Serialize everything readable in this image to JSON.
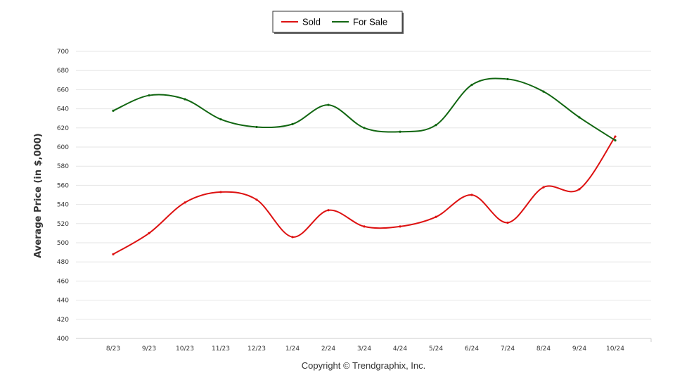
{
  "chart_data": {
    "type": "line",
    "x": [
      "8/23",
      "9/23",
      "10/23",
      "11/23",
      "12/23",
      "1/24",
      "2/24",
      "3/24",
      "4/24",
      "5/24",
      "6/24",
      "7/24",
      "8/24",
      "9/24",
      "10/24"
    ],
    "series": [
      {
        "name": "Sold",
        "color": "#dd1111",
        "values": [
          488,
          510,
          542,
          553,
          545,
          506,
          534,
          517,
          517,
          527,
          550,
          521,
          558,
          556,
          611
        ]
      },
      {
        "name": "For Sale",
        "color": "#116611",
        "values": [
          638,
          654,
          650,
          629,
          621,
          624,
          644,
          620,
          616,
          623,
          665,
          671,
          658,
          631,
          607
        ]
      }
    ],
    "ylabel": "Average Price (in $,000)",
    "ylim": [
      400,
      700
    ],
    "yticks": [
      400,
      420,
      440,
      460,
      480,
      500,
      520,
      540,
      560,
      580,
      600,
      620,
      640,
      660,
      680,
      700
    ],
    "grid": true,
    "legend": "top-center"
  },
  "footer": {
    "copyright": "Copyright © Trendgraphix, Inc."
  }
}
